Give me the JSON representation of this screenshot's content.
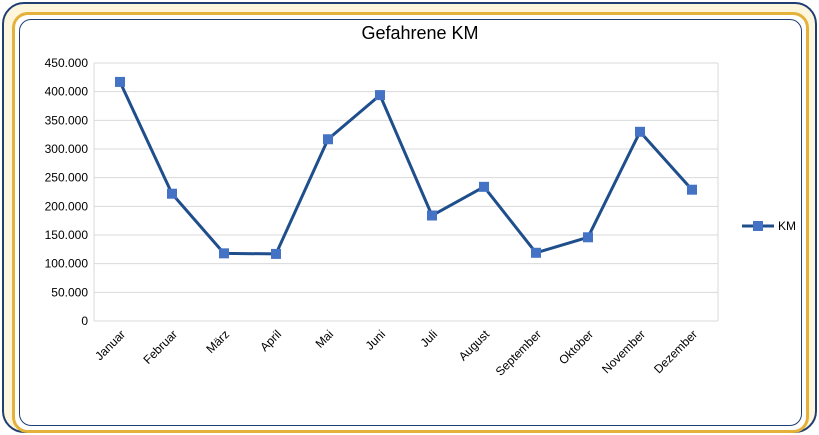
{
  "chart_data": {
    "type": "line",
    "title": "Gefahrene KM",
    "categories": [
      "Januar",
      "Februar",
      "März",
      "April",
      "Mai",
      "Juni",
      "Juli",
      "August",
      "September",
      "Oktober",
      "November",
      "Dezember"
    ],
    "series": [
      {
        "name": "KM",
        "color": "#1f4e8c",
        "marker_color": "#4472c4",
        "values": [
          417000,
          222000,
          118000,
          117000,
          317000,
          394000,
          184000,
          234000,
          119000,
          146000,
          330000,
          229000
        ]
      }
    ],
    "y_ticks": [
      "0",
      "50.000",
      "100.000",
      "150.000",
      "200.000",
      "250.000",
      "300.000",
      "350.000",
      "400.000",
      "450.000"
    ],
    "ylim": [
      0,
      450000
    ],
    "grid": true,
    "legend_position": "right"
  }
}
